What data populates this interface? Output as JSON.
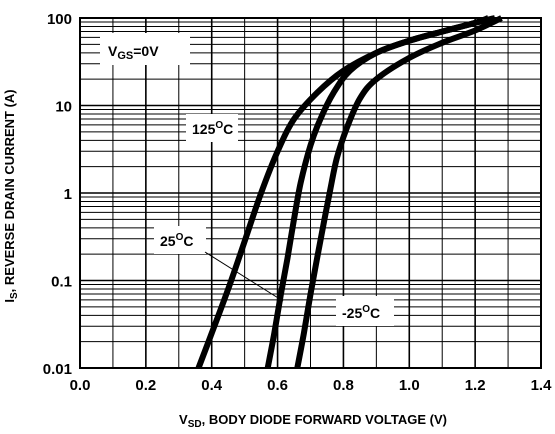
{
  "chart_data": {
    "type": "line",
    "xlim": [
      0.0,
      1.4
    ],
    "ylim": [
      0.01,
      100
    ],
    "yscale": "log",
    "grid": true,
    "x_ticks": [
      "0.0",
      "0.2",
      "0.4",
      "0.6",
      "0.8",
      "1.0",
      "1.2",
      "1.4"
    ],
    "y_ticks": [
      "0.01",
      "0.1",
      "1",
      "10",
      "100"
    ],
    "xlabel": {
      "main": "V",
      "sub": "SD",
      "rest": ", BODY DIODE FORWARD VOLTAGE (V)"
    },
    "ylabel": {
      "main": "I",
      "sub": "S",
      "rest": ", REVERSE DRAIN CURRENT (A)"
    },
    "condition": {
      "main": "V",
      "sub": "GS",
      "rest": "=0V"
    },
    "series": [
      {
        "name": "125°C",
        "label": {
          "num": "125",
          "sup": "O",
          "unit": "C"
        },
        "x": [
          0.36,
          0.4,
          0.45,
          0.5,
          0.55,
          0.6,
          0.65,
          0.72,
          0.8,
          0.9,
          1.0,
          1.1,
          1.2,
          1.24
        ],
        "y": [
          0.01,
          0.025,
          0.08,
          0.28,
          1.0,
          3.0,
          7.0,
          14,
          25,
          40,
          55,
          70,
          88,
          100
        ]
      },
      {
        "name": "25°C",
        "label": {
          "num": "25",
          "sup": "O",
          "unit": "C"
        },
        "x": [
          0.57,
          0.59,
          0.61,
          0.63,
          0.65,
          0.67,
          0.7,
          0.73,
          0.77,
          0.82,
          0.9,
          1.0,
          1.1,
          1.2,
          1.26
        ],
        "y": [
          0.01,
          0.025,
          0.07,
          0.18,
          0.5,
          1.3,
          3.5,
          7.0,
          14,
          25,
          40,
          55,
          70,
          88,
          100
        ]
      },
      {
        "name": "-25°C",
        "label": {
          "num": "-25",
          "sup": "O",
          "unit": "C"
        },
        "x": [
          0.66,
          0.68,
          0.7,
          0.72,
          0.74,
          0.76,
          0.78,
          0.81,
          0.85,
          0.9,
          1.0,
          1.1,
          1.2,
          1.28
        ],
        "y": [
          0.01,
          0.025,
          0.07,
          0.18,
          0.45,
          1.1,
          2.5,
          5.5,
          12,
          20,
          35,
          52,
          72,
          100
        ]
      }
    ],
    "colors": {
      "background": "#ffffff",
      "line": "#000000"
    }
  }
}
